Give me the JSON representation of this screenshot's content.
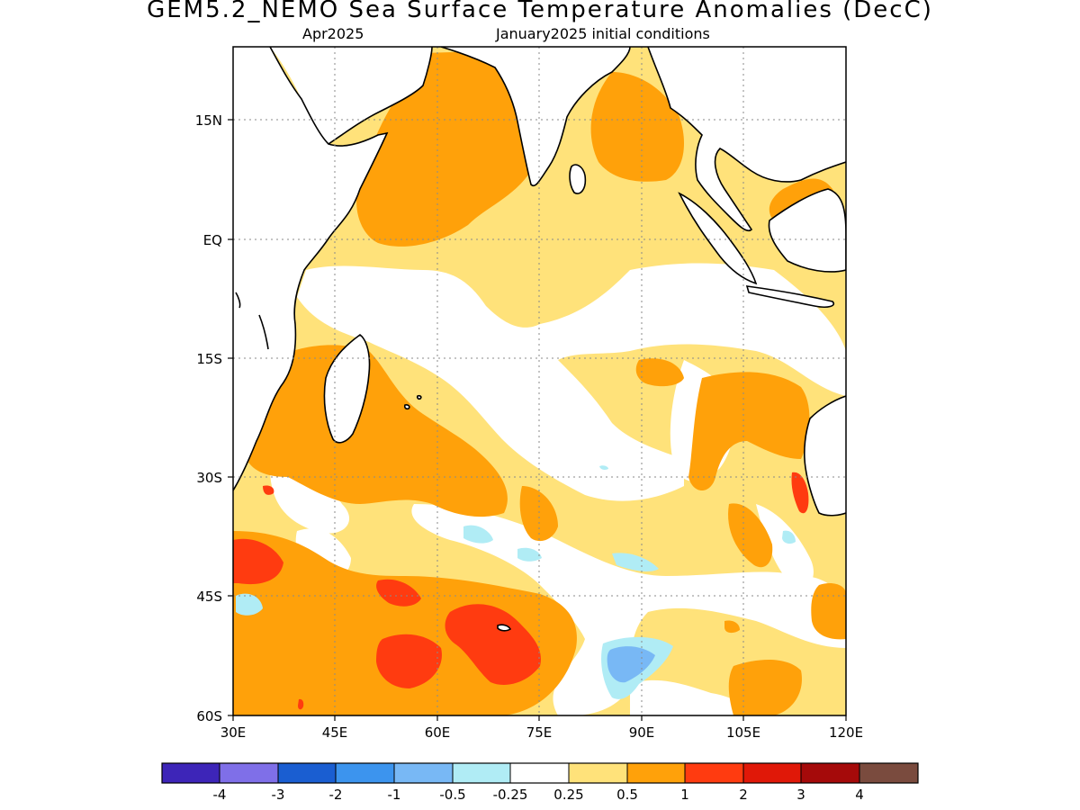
{
  "header": {
    "title": "GEM5.2_NEMO Sea Surface Temperature Anomalies (DecC)",
    "month": "Apr2025",
    "init": "January2025 initial conditions"
  },
  "axes": {
    "lat_labels": [
      "15N",
      "EQ",
      "15S",
      "30S",
      "45S",
      "60S"
    ],
    "lon_labels": [
      "30E",
      "45E",
      "60E",
      "75E",
      "90E",
      "105E",
      "120E"
    ]
  },
  "colorbar": {
    "colors": [
      "#3d25b8",
      "#7f6fe8",
      "#1a5ed1",
      "#3c94ee",
      "#78b8f5",
      "#b0ecf5",
      "#ffffff",
      "#ffe27a",
      "#ffa10a",
      "#ff3b10",
      "#e01808",
      "#a50a0a",
      "#7a4b3e"
    ],
    "labels": [
      "-4",
      "-3",
      "-2",
      "-1",
      "-0.5",
      "-0.25",
      "0.25",
      "0.5",
      "1",
      "2",
      "3",
      "4"
    ]
  }
}
